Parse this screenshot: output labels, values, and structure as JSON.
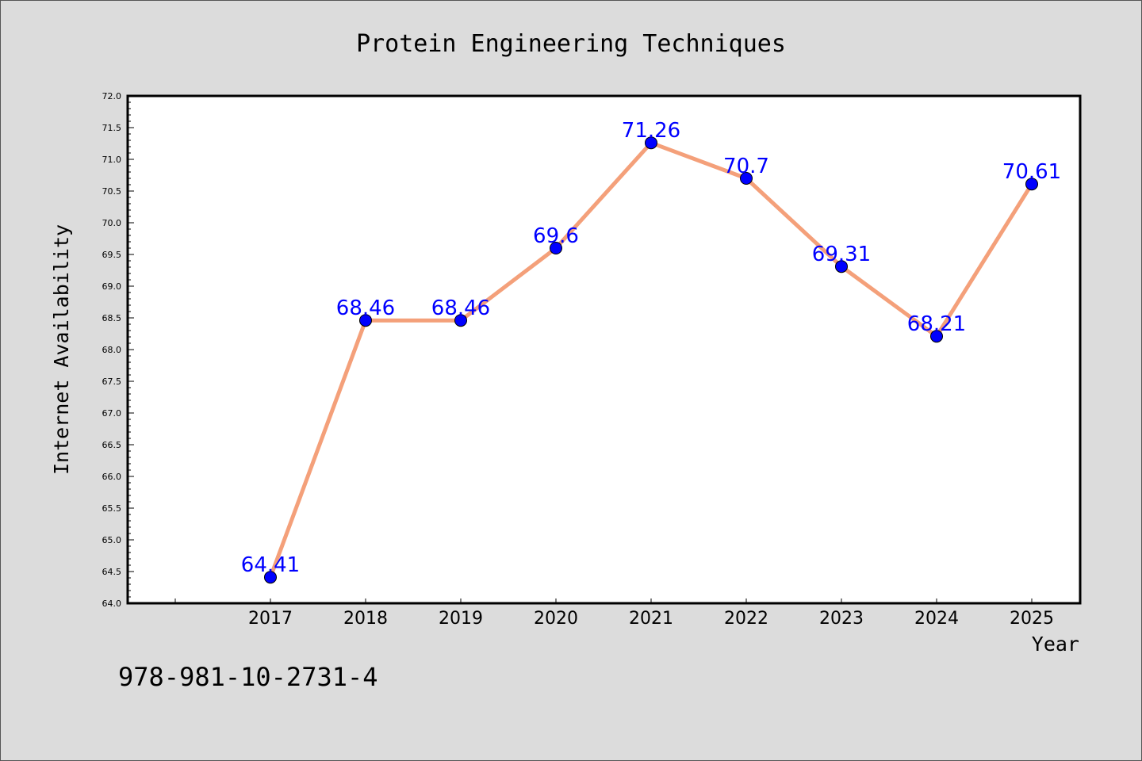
{
  "chart_data": {
    "type": "line",
    "title": "Protein Engineering Techniques",
    "xlabel": "Year",
    "ylabel": "Internet Availability",
    "x": [
      "2017",
      "2018",
      "2019",
      "2020",
      "2021",
      "2022",
      "2023",
      "2024",
      "2025"
    ],
    "series": [
      {
        "values": [
          64.41,
          68.46,
          68.46,
          69.6,
          71.26,
          70.7,
          69.31,
          68.21,
          70.61
        ],
        "labels": [
          "64.41",
          "68.46",
          "68.46",
          "69.6",
          "71.26",
          "70.7",
          "69.31",
          "68.21",
          "70.61"
        ],
        "line_color": "#f4a07a",
        "marker_color": "#0000ff"
      }
    ],
    "ylim": [
      64.0,
      72.0
    ],
    "yticks": [
      "64.0",
      "64.5",
      "65.0",
      "65.5",
      "66.0",
      "66.5",
      "67.0",
      "67.5",
      "68.0",
      "68.5",
      "69.0",
      "69.5",
      "70.0",
      "70.5",
      "71.0",
      "71.5",
      "72.0"
    ],
    "grid": false,
    "annotation": "978-981-10-2731-4",
    "label_color": "#0000ff"
  }
}
